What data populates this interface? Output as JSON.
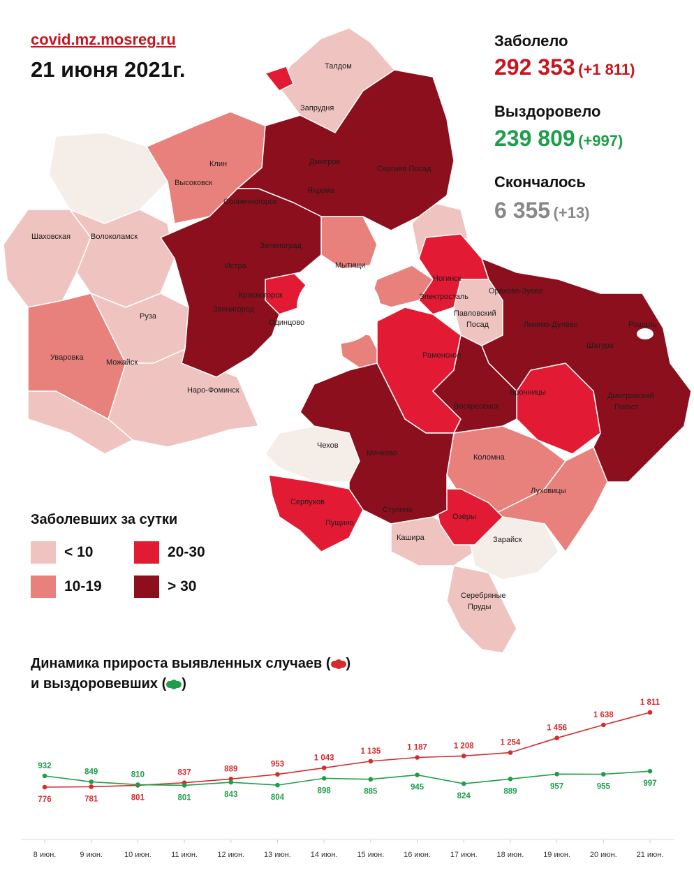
{
  "header": {
    "site": "covid.mz.mosreg.ru",
    "date": "21 июня 2021г."
  },
  "stats": {
    "infected": {
      "label": "Заболело",
      "value": "292 353",
      "delta": "(+1 811)",
      "color": "#c8161d"
    },
    "recovered": {
      "label": "Выздоровело",
      "value": "239 809",
      "delta": "(+997)",
      "color": "#1e9e4a"
    },
    "died": {
      "label": "Скончалось",
      "value": "6 355",
      "delta": "(+13)",
      "color": "#888888"
    }
  },
  "map": {
    "districts": [
      "Талдом",
      "Запрудня",
      "Клин",
      "Высоковск",
      "Дмитров",
      "Сергиев Посад",
      "Яхрома",
      "Солнечногорск",
      "Шаховская",
      "Волоколамск",
      "Зеленоград",
      "Мытищи",
      "Истра",
      "Красногорск",
      "Ногинск",
      "Электросталь",
      "Орехово-Зуево",
      "Павловский Посад",
      "Ликино-Дулёво",
      "Рошаль",
      "Шатура",
      "Руза",
      "Звенигород",
      "Одинцово",
      "Раменское",
      "Уваровка",
      "Можайск",
      "Наро-Фоминск",
      "Бронницы",
      "Дмитровский Погост",
      "Воскресенск",
      "Чехов",
      "Мячково",
      "Коломна",
      "Луховицы",
      "Серпухов",
      "Пущино",
      "Ступино",
      "Озёры",
      "Кашира",
      "Зарайск",
      "Серебряные Пруды"
    ]
  },
  "legend": {
    "title": "Заболевших за сутки",
    "items": [
      {
        "label": "< 10",
        "color": "#efc3c0"
      },
      {
        "label": "20-30",
        "color": "#e21a33"
      },
      {
        "label": "10-19",
        "color": "#e8807c"
      },
      {
        "label": "> 30",
        "color": "#8b0f1c"
      }
    ]
  },
  "dynamics": {
    "title_line1": "Динамика прироста выявленных случаев (",
    "title_line1_end": ")",
    "title_line2": "и выздоровевших (",
    "title_line2_end": ")"
  },
  "chart_data": {
    "type": "line",
    "categories": [
      "8 июн.",
      "9 июн.",
      "10 июн.",
      "11 июн.",
      "12 июн.",
      "13 июн.",
      "14 июн.",
      "15 июн.",
      "16 июн.",
      "17 июн.",
      "18 июн.",
      "19 июн.",
      "20 июн.",
      "21 июн."
    ],
    "series": [
      {
        "values": [
          776,
          781,
          801,
          837,
          889,
          953,
          1043,
          1135,
          1187,
          1208,
          1254,
          1456,
          1638,
          1811
        ],
        "labels": [
          "776",
          "781",
          "801",
          "837",
          "889",
          "953",
          "1 043",
          "1 135",
          "1 187",
          "1 208",
          "1 254",
          "1 456",
          "1 638",
          "1 811"
        ],
        "color": "#d62b2b"
      },
      {
        "values": [
          932,
          849,
          810,
          801,
          843,
          804,
          898,
          885,
          945,
          824,
          889,
          957,
          955,
          997
        ],
        "labels": [
          "932",
          "849",
          "810",
          "801",
          "843",
          "804",
          "898",
          "885",
          "945",
          "824",
          "889",
          "957",
          "955",
          "997"
        ],
        "color": "#1e9e4a"
      }
    ],
    "grid": false
  }
}
